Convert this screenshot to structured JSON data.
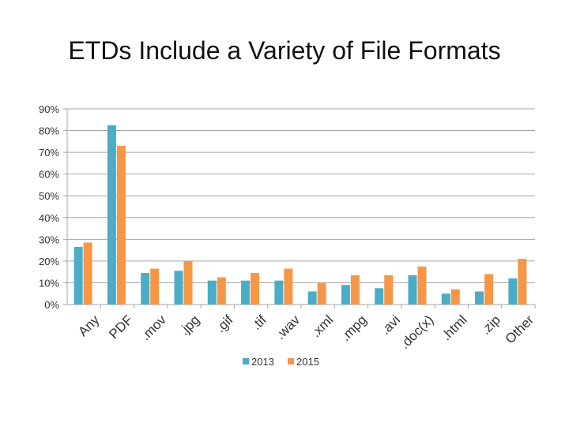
{
  "chart_data": {
    "type": "bar",
    "title": "ETDs Include a Variety of File Formats",
    "categories": [
      "Any",
      "PDF",
      ".mov",
      ".jpg",
      ".gif",
      ".tif",
      ".wav",
      ".xml",
      ".mpg",
      ".avi",
      ".doc(x)",
      ".html",
      ".zip",
      "Other"
    ],
    "series": [
      {
        "name": "2013",
        "color": "#4bacc6",
        "values": [
          26.5,
          82.5,
          14.5,
          15.5,
          11,
          11,
          11,
          6,
          9,
          7.5,
          13.5,
          5,
          6,
          12
        ]
      },
      {
        "name": "2015",
        "color": "#f79646",
        "values": [
          28.5,
          73,
          16.5,
          20,
          12.5,
          14.5,
          16.5,
          10,
          13.5,
          13.5,
          17.5,
          7,
          14,
          21
        ]
      }
    ],
    "ylim": [
      0,
      90
    ],
    "y_ticks": [
      "0%",
      "10%",
      "20%",
      "30%",
      "40%",
      "50%",
      "60%",
      "70%",
      "80%",
      "90%"
    ],
    "grid": true,
    "legend": "bottom"
  }
}
